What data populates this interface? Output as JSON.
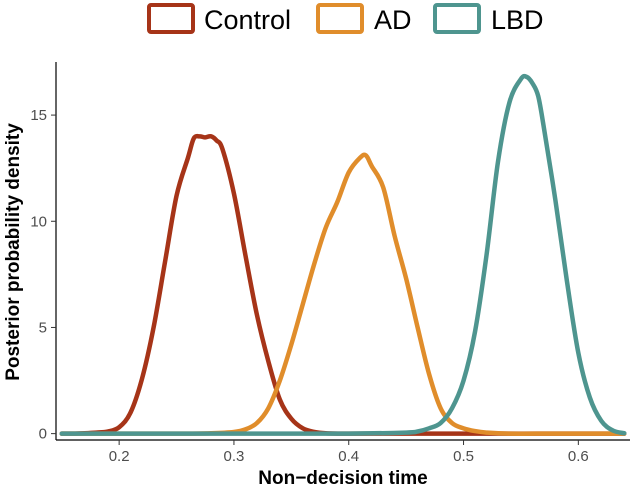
{
  "chart_data": {
    "type": "line",
    "subtype": "density",
    "title": "",
    "xlabel": "Non−decision time",
    "ylabel": "Posterior probability density",
    "xlim": [
      0.145,
      0.645
    ],
    "ylim": [
      -0.3,
      17.5
    ],
    "x_ticks": [
      0.2,
      0.3,
      0.4,
      0.5,
      0.6
    ],
    "x_tick_labels": [
      "0.2",
      "0.3",
      "0.4",
      "0.5",
      "0.6"
    ],
    "y_ticks": [
      0,
      5,
      10,
      15
    ],
    "y_tick_labels": [
      "0",
      "5",
      "10",
      "15"
    ],
    "grid": false,
    "legend_position": "top",
    "series": [
      {
        "name": "Control",
        "color": "#A63418",
        "x": [
          0.15,
          0.16,
          0.17,
          0.18,
          0.19,
          0.2,
          0.21,
          0.22,
          0.23,
          0.24,
          0.25,
          0.26,
          0.265,
          0.27,
          0.275,
          0.28,
          0.285,
          0.29,
          0.3,
          0.31,
          0.32,
          0.33,
          0.34,
          0.35,
          0.36,
          0.37,
          0.38,
          0.4,
          0.45,
          0.5,
          0.55,
          0.6,
          0.64
        ],
        "y": [
          0,
          0,
          0.02,
          0.05,
          0.1,
          0.3,
          1.0,
          2.6,
          5.0,
          8.1,
          11.2,
          13.0,
          13.9,
          14.0,
          13.95,
          14.0,
          13.8,
          13.4,
          11.3,
          8.4,
          5.6,
          3.4,
          1.6,
          0.7,
          0.25,
          0.08,
          0.02,
          0,
          0,
          0,
          0,
          0,
          0
        ]
      },
      {
        "name": "AD",
        "color": "#E08D2B",
        "x": [
          0.15,
          0.2,
          0.25,
          0.28,
          0.3,
          0.31,
          0.32,
          0.33,
          0.34,
          0.35,
          0.36,
          0.37,
          0.38,
          0.39,
          0.4,
          0.41,
          0.415,
          0.42,
          0.43,
          0.44,
          0.45,
          0.46,
          0.47,
          0.48,
          0.49,
          0.5,
          0.51,
          0.52,
          0.54,
          0.58,
          0.64
        ],
        "y": [
          0,
          0,
          0,
          0.02,
          0.08,
          0.2,
          0.5,
          1.2,
          2.5,
          4.2,
          6.1,
          8.0,
          9.7,
          10.9,
          12.3,
          13.0,
          13.1,
          12.6,
          11.6,
          9.3,
          7.3,
          5.0,
          2.8,
          1.2,
          0.5,
          0.25,
          0.12,
          0.05,
          0,
          0,
          0
        ]
      },
      {
        "name": "LBD",
        "color": "#4E958F",
        "x": [
          0.15,
          0.2,
          0.3,
          0.4,
          0.45,
          0.46,
          0.47,
          0.48,
          0.49,
          0.5,
          0.51,
          0.52,
          0.53,
          0.54,
          0.55,
          0.555,
          0.56,
          0.565,
          0.57,
          0.58,
          0.59,
          0.6,
          0.61,
          0.62,
          0.63,
          0.64
        ],
        "y": [
          0,
          0,
          0,
          0,
          0.05,
          0.1,
          0.25,
          0.5,
          1.2,
          2.5,
          4.8,
          8.4,
          12.8,
          15.6,
          16.7,
          16.8,
          16.5,
          15.9,
          14.4,
          11.0,
          7.2,
          3.8,
          1.7,
          0.6,
          0.15,
          0.02
        ]
      }
    ]
  }
}
